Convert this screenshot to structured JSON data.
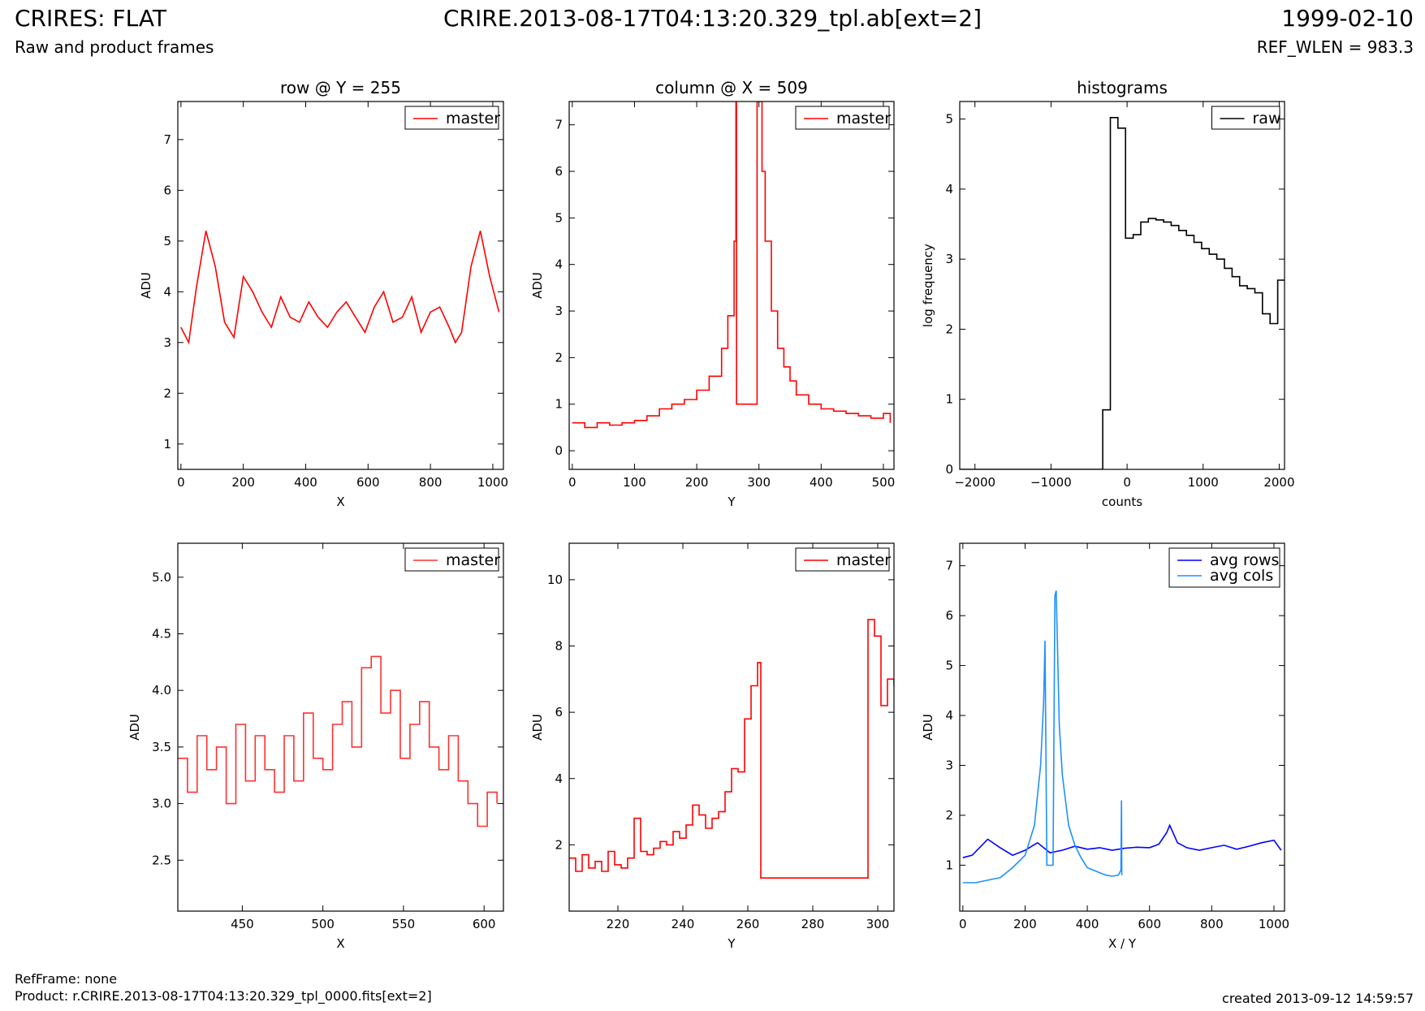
{
  "header": {
    "title_left": "CRIRES: FLAT",
    "title_center": "CRIRE.2013-08-17T04:13:20.329_tpl.ab[ext=2]",
    "title_right": "1999-02-10",
    "subtitle_left": "Raw and product frames",
    "subtitle_right": "REF_WLEN = 983.3"
  },
  "footer": {
    "refframe": "RefFrame: none",
    "product": "Product: r.CRIRE.2013-08-17T04:13:20.329_tpl_0000.fits[ext=2]",
    "created": "created 2013-09-12 14:59:57"
  },
  "chart_data": [
    {
      "type": "line",
      "title": "row @ Y = 255",
      "xlabel": "X",
      "ylabel": "ADU",
      "xlim": [
        -10,
        1034
      ],
      "ylim": [
        0.5,
        7.75
      ],
      "xticks": [
        0,
        200,
        400,
        600,
        800,
        1000
      ],
      "yticks": [
        1,
        2,
        3,
        4,
        5,
        6,
        7
      ],
      "legend": "top-right",
      "series": [
        {
          "name": "master",
          "color": "#ff0000",
          "step": false,
          "x": [
            0,
            25,
            50,
            80,
            110,
            140,
            170,
            200,
            230,
            260,
            290,
            320,
            350,
            380,
            410,
            440,
            470,
            500,
            530,
            560,
            590,
            620,
            650,
            680,
            710,
            740,
            770,
            800,
            830,
            860,
            880,
            900,
            930,
            960,
            990,
            1020
          ],
          "y": [
            3.3,
            3.0,
            4.1,
            5.2,
            4.5,
            3.4,
            3.1,
            4.3,
            4.0,
            3.6,
            3.3,
            3.9,
            3.5,
            3.4,
            3.8,
            3.5,
            3.3,
            3.6,
            3.8,
            3.5,
            3.2,
            3.7,
            4.0,
            3.4,
            3.5,
            3.9,
            3.2,
            3.6,
            3.7,
            3.3,
            3.0,
            3.2,
            4.5,
            5.2,
            4.3,
            3.6
          ]
        }
      ]
    },
    {
      "type": "line",
      "title": "column @ X = 509",
      "xlabel": "Y",
      "ylabel": "ADU",
      "xlim": [
        -5,
        517
      ],
      "ylim": [
        -0.4,
        7.5
      ],
      "xticks": [
        0,
        100,
        200,
        300,
        400,
        500
      ],
      "yticks": [
        0,
        1,
        2,
        3,
        4,
        5,
        6,
        7
      ],
      "legend": "top-right",
      "series": [
        {
          "name": "master",
          "color": "#ff0000",
          "step": true,
          "x": [
            0,
            20,
            40,
            60,
            80,
            100,
            120,
            140,
            160,
            180,
            200,
            220,
            240,
            250,
            260,
            263,
            264,
            296,
            297,
            300,
            305,
            310,
            320,
            330,
            340,
            350,
            360,
            380,
            400,
            420,
            440,
            460,
            480,
            500,
            511
          ],
          "y": [
            0.6,
            0.5,
            0.6,
            0.55,
            0.6,
            0.65,
            0.75,
            0.9,
            1.0,
            1.1,
            1.3,
            1.6,
            2.2,
            2.9,
            4.5,
            7.5,
            1.0,
            1.0,
            7.5,
            7.5,
            6.0,
            4.5,
            3.0,
            2.2,
            1.8,
            1.5,
            1.2,
            1.0,
            0.9,
            0.85,
            0.8,
            0.75,
            0.7,
            0.8,
            0.6
          ]
        }
      ]
    },
    {
      "type": "line",
      "title": "histograms",
      "xlabel": "counts",
      "ylabel": "log frequency",
      "xlim": [
        -2200,
        2070
      ],
      "ylim": [
        0,
        5.25
      ],
      "xticks": [
        -2000,
        -1000,
        0,
        1000,
        2000
      ],
      "yticks": [
        0,
        1,
        2,
        3,
        4,
        5
      ],
      "legend": "top-right",
      "series": [
        {
          "name": "raw",
          "color": "#000000",
          "step": true,
          "x": [
            -2200,
            -320,
            -220,
            -120,
            -20,
            80,
            180,
            280,
            380,
            480,
            580,
            680,
            780,
            880,
            980,
            1080,
            1180,
            1280,
            1380,
            1480,
            1580,
            1680,
            1780,
            1880,
            1980,
            2070
          ],
          "y": [
            0,
            0.85,
            5.02,
            4.87,
            3.3,
            3.35,
            3.53,
            3.58,
            3.56,
            3.53,
            3.48,
            3.41,
            3.34,
            3.24,
            3.15,
            3.07,
            3.0,
            2.87,
            2.75,
            2.62,
            2.58,
            2.52,
            2.22,
            2.08,
            2.7,
            2.7
          ]
        }
      ]
    },
    {
      "type": "line",
      "title": "",
      "xlabel": "X",
      "ylabel": "ADU",
      "xlim": [
        410,
        612
      ],
      "ylim": [
        2.05,
        5.3
      ],
      "xticks": [
        450,
        500,
        550,
        600
      ],
      "yticks": [
        2.5,
        3.0,
        3.5,
        4.0,
        4.5,
        5.0
      ],
      "tick_format": 1,
      "legend": "top-right",
      "series": [
        {
          "name": "master",
          "color": "#ff3030",
          "step": true,
          "x": [
            410,
            416,
            422,
            428,
            434,
            440,
            446,
            452,
            458,
            464,
            470,
            476,
            482,
            488,
            494,
            500,
            506,
            512,
            518,
            524,
            530,
            536,
            542,
            548,
            554,
            560,
            566,
            572,
            578,
            584,
            590,
            596,
            602,
            608
          ],
          "y": [
            3.4,
            3.1,
            3.6,
            3.3,
            3.5,
            3.0,
            3.7,
            3.2,
            3.6,
            3.3,
            3.1,
            3.6,
            3.2,
            3.8,
            3.4,
            3.3,
            3.7,
            3.9,
            3.5,
            4.2,
            4.3,
            3.8,
            4.0,
            3.4,
            3.7,
            3.9,
            3.5,
            3.3,
            3.6,
            3.2,
            3.0,
            2.8,
            3.1,
            3.0
          ]
        }
      ]
    },
    {
      "type": "line",
      "title": "",
      "xlabel": "Y",
      "ylabel": "ADU",
      "xlim": [
        205,
        305
      ],
      "ylim": [
        0,
        11.1
      ],
      "xticks": [
        220,
        240,
        260,
        280,
        300
      ],
      "yticks": [
        2,
        4,
        6,
        8,
        10
      ],
      "legend": "top-right",
      "series": [
        {
          "name": "master",
          "color": "#ff0000",
          "step": true,
          "x": [
            205,
            207,
            209,
            211,
            213,
            215,
            217,
            219,
            221,
            223,
            225,
            227,
            229,
            231,
            233,
            235,
            237,
            239,
            241,
            243,
            245,
            247,
            249,
            251,
            253,
            255,
            257,
            259,
            261,
            263,
            264,
            296,
            297,
            299,
            301,
            303,
            305
          ],
          "y": [
            1.6,
            1.2,
            1.7,
            1.3,
            1.5,
            1.2,
            1.8,
            1.4,
            1.3,
            1.6,
            2.8,
            1.8,
            1.7,
            1.9,
            2.1,
            2.0,
            2.4,
            2.2,
            2.6,
            3.2,
            2.9,
            2.5,
            2.8,
            3.0,
            3.6,
            4.3,
            4.2,
            5.8,
            6.8,
            7.5,
            1.0,
            1.0,
            8.8,
            8.3,
            6.2,
            7.0,
            6.8
          ]
        }
      ]
    },
    {
      "type": "line",
      "title": "",
      "xlabel": "X / Y",
      "ylabel": "ADU",
      "xlim": [
        -10,
        1034
      ],
      "ylim": [
        0.08,
        7.45
      ],
      "xticks": [
        0,
        200,
        400,
        600,
        800,
        1000
      ],
      "yticks": [
        1,
        2,
        3,
        4,
        5,
        6,
        7
      ],
      "legend": "top-right",
      "series": [
        {
          "name": "avg rows",
          "color": "#0000ff",
          "step": false,
          "x": [
            0,
            30,
            80,
            120,
            160,
            200,
            240,
            280,
            320,
            360,
            400,
            440,
            480,
            520,
            560,
            600,
            630,
            655,
            665,
            690,
            720,
            760,
            800,
            840,
            880,
            920,
            960,
            1000,
            1023
          ],
          "y": [
            1.15,
            1.2,
            1.52,
            1.35,
            1.2,
            1.3,
            1.45,
            1.25,
            1.3,
            1.38,
            1.32,
            1.35,
            1.3,
            1.34,
            1.36,
            1.35,
            1.42,
            1.65,
            1.8,
            1.45,
            1.35,
            1.3,
            1.35,
            1.4,
            1.32,
            1.38,
            1.45,
            1.5,
            1.3
          ]
        },
        {
          "name": "avg cols",
          "color": "#1e90ff",
          "step": false,
          "x": [
            0,
            40,
            80,
            120,
            160,
            200,
            230,
            250,
            260,
            264,
            270,
            290,
            296,
            300,
            310,
            320,
            340,
            360,
            380,
            400,
            420,
            440,
            460,
            480,
            500,
            508,
            510,
            511
          ],
          "y": [
            0.65,
            0.65,
            0.7,
            0.75,
            0.95,
            1.2,
            1.8,
            3.0,
            4.3,
            5.5,
            1.0,
            1.0,
            6.4,
            6.5,
            3.8,
            2.8,
            1.8,
            1.4,
            1.15,
            0.95,
            0.9,
            0.85,
            0.8,
            0.78,
            0.8,
            0.9,
            2.3,
            0.8
          ]
        }
      ]
    }
  ]
}
